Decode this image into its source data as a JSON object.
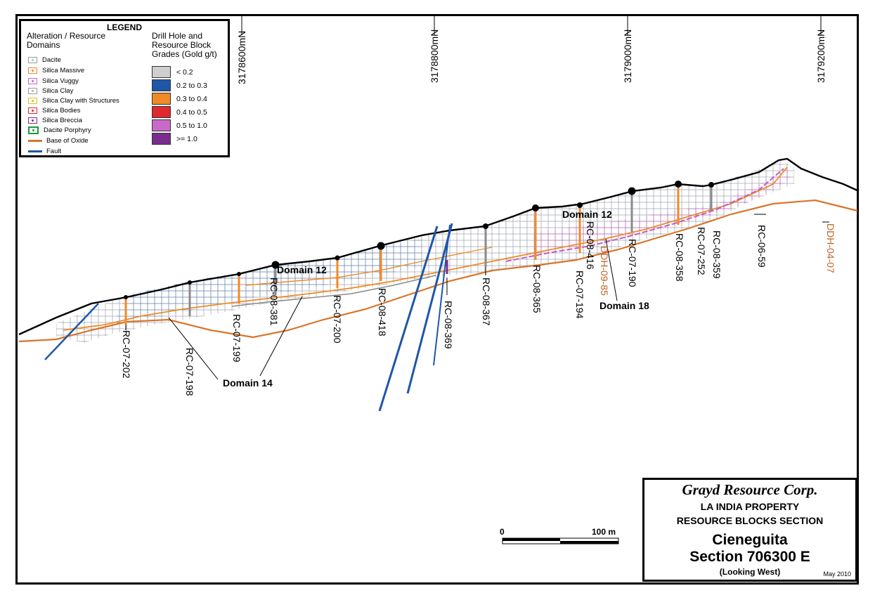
{
  "legend": {
    "title": "LEGEND",
    "alteration_heading": "Alteration / Resource Domains",
    "grade_heading": "Drill Hole and Resource Block Grades (Gold g/t)",
    "alteration_items": [
      {
        "label": "Dacite",
        "color": "#7fd3e6"
      },
      {
        "label": "Silica Massive",
        "color": "#f08a24"
      },
      {
        "label": "Silica Vuggy",
        "color": "#c86ac8"
      },
      {
        "label": "Silica Clay",
        "color": "#b0b0b0"
      },
      {
        "label": "Silica Clay with Structures",
        "color": "#d6c81e"
      },
      {
        "label": "Silica Bodies",
        "color": "#e0282e"
      },
      {
        "label": "Silica Breccia",
        "color": "#7b2d8f"
      },
      {
        "label": "Dacite Porphyry",
        "color": "#1a9a3a"
      },
      {
        "label": "Base of Oxide",
        "color": "#d9752b"
      },
      {
        "label": "Fault",
        "color": "#1f56a8"
      }
    ],
    "grade_items": [
      {
        "label": "< 0.2",
        "color": "#cfcfcf"
      },
      {
        "label": "0.2 to 0.3",
        "color": "#1f56a8"
      },
      {
        "label": "0.3 to 0.4",
        "color": "#f08a24"
      },
      {
        "label": "0.4 to 0.5",
        "color": "#e0282e"
      },
      {
        "label": "0.5 to 1.0",
        "color": "#c86ac8"
      },
      {
        "label": ">= 1.0",
        "color": "#7b2d8f"
      }
    ]
  },
  "northings": [
    "3178600mN",
    "3178800mN",
    "3179000mN",
    "3179200mN"
  ],
  "drill_holes": [
    {
      "label": "RC-07-202",
      "color": "black"
    },
    {
      "label": "RC-07-198",
      "color": "black"
    },
    {
      "label": "RC-07-199",
      "color": "black"
    },
    {
      "label": "RC-08-381",
      "color": "black"
    },
    {
      "label": "RC-07-200",
      "color": "black"
    },
    {
      "label": "RC-08-418",
      "color": "black"
    },
    {
      "label": "RC-08-369",
      "color": "black"
    },
    {
      "label": "RC-08-367",
      "color": "black"
    },
    {
      "label": "RC-08-365",
      "color": "black"
    },
    {
      "label": "RC-07-194",
      "color": "black"
    },
    {
      "label": "RC-08-416",
      "color": "black"
    },
    {
      "label": "RC-07-190",
      "color": "black"
    },
    {
      "label": "RC-08-358",
      "color": "black"
    },
    {
      "label": "RC-07-252",
      "color": "black"
    },
    {
      "label": "RC-08-359",
      "color": "black"
    },
    {
      "label": "RC-06-59",
      "color": "black"
    },
    {
      "label": "DDH-09-85",
      "color": "orange"
    },
    {
      "label": "DDH-04-07",
      "color": "orange"
    }
  ],
  "domains": [
    "Domain 12",
    "Domain 12",
    "Domain 14",
    "Domain 18"
  ],
  "scale": {
    "zero": "0",
    "length": "100 m"
  },
  "title_block": {
    "company": "Grayd Resource Corp.",
    "property": "LA INDIA PROPERTY",
    "section_type": "RESOURCE BLOCKS SECTION",
    "area": "Cieneguita",
    "section": "Section 706300 E",
    "view": "(Looking West)",
    "date": "May 2010"
  }
}
